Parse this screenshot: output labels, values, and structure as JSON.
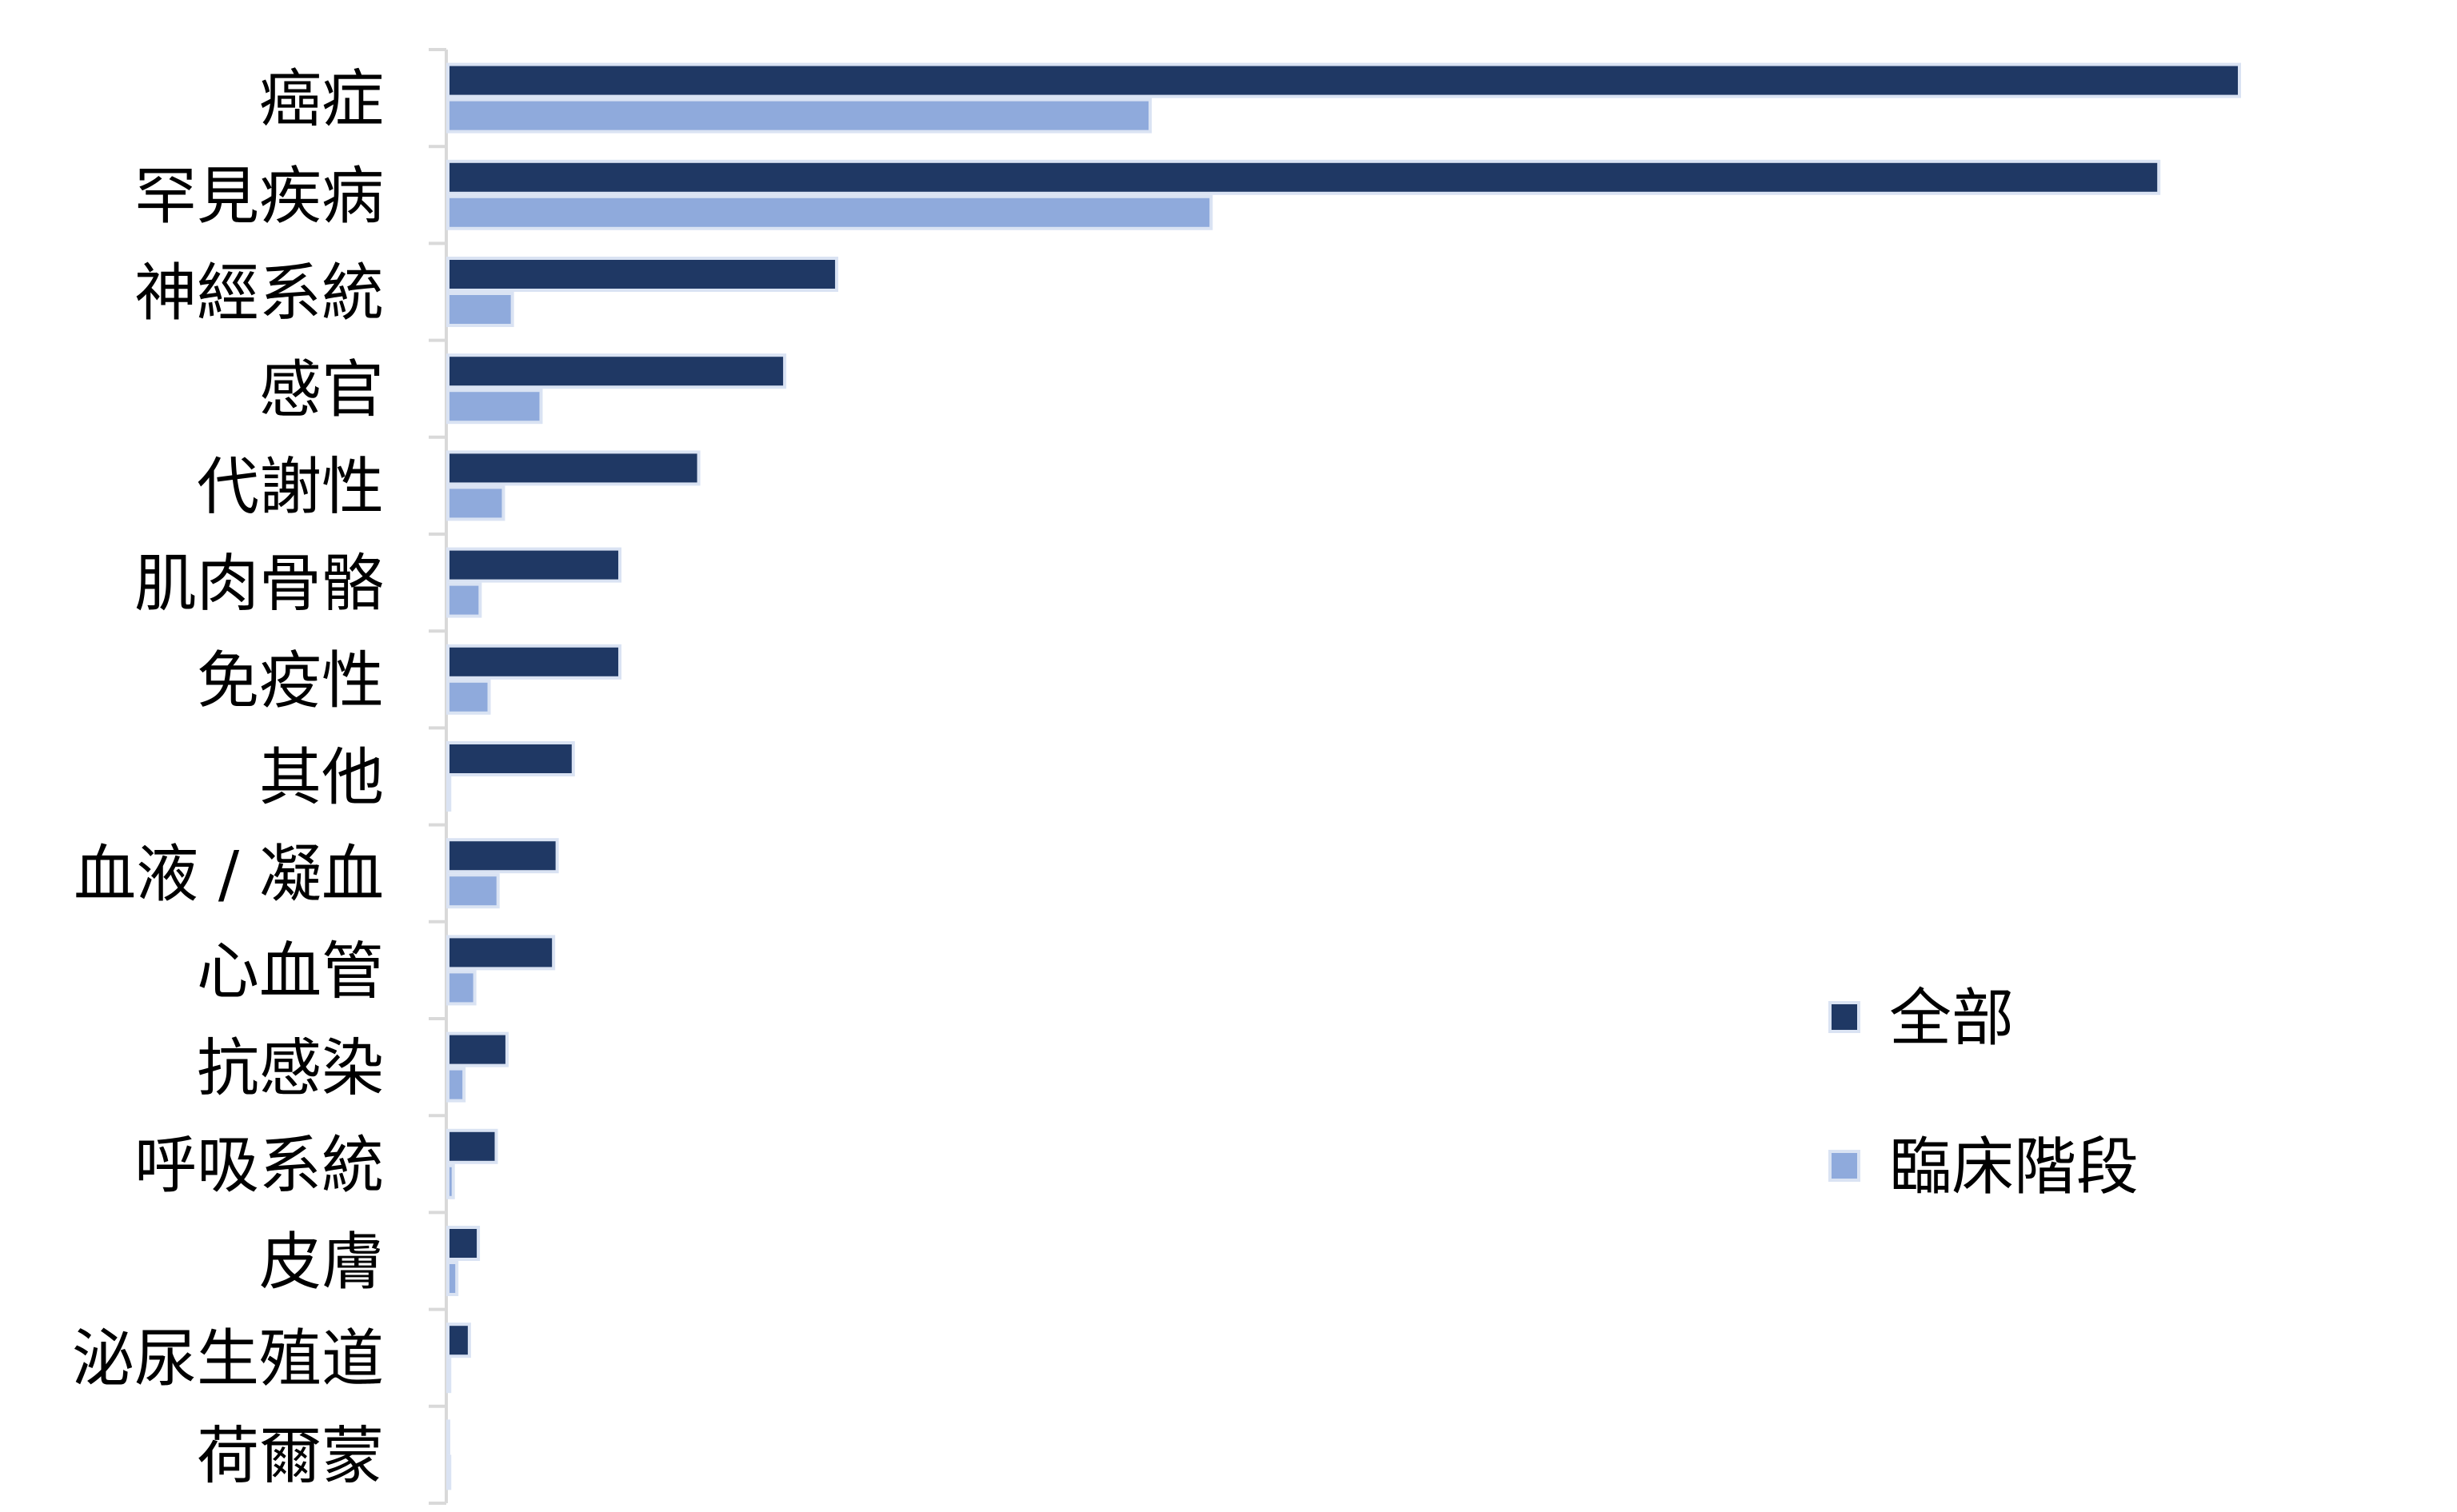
{
  "chart_data": {
    "type": "bar",
    "orientation": "horizontal",
    "categories": [
      "癌症",
      "罕見疾病",
      "神經系統",
      "感官",
      "代謝性",
      "肌肉骨骼",
      "免疫性",
      "其他",
      "血液 / 凝血",
      "心血管",
      "抗感染",
      "呼吸系統",
      "皮膚",
      "泌尿生殖道",
      "荷爾蒙"
    ],
    "series": [
      {
        "name": "全部",
        "color": "#1f3864",
        "values": [
          1000,
          955,
          217,
          188,
          140,
          96,
          96,
          70,
          61,
          59,
          33,
          27,
          17,
          12,
          0
        ]
      },
      {
        "name": "臨床階段",
        "color": "#8faadc",
        "values": [
          392,
          426,
          36,
          52,
          31,
          18,
          23,
          1,
          28,
          15,
          9,
          3,
          5,
          1,
          1
        ]
      }
    ],
    "xlim": [
      0,
      1000
    ],
    "x_axis_visible": false,
    "grid": false,
    "legend_position": "right"
  }
}
